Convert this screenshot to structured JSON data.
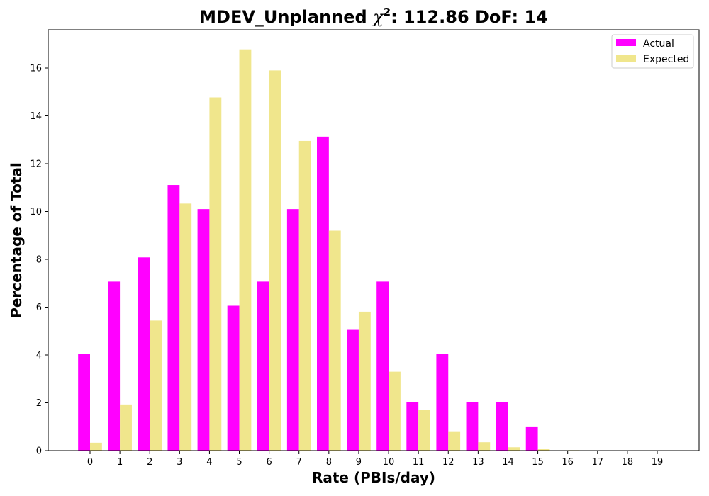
{
  "chart_data": {
    "type": "bar",
    "title_prefix": "MDEV_Unplanned ",
    "title_chi": "χ",
    "title_chi_exp": "2",
    "title_suffix": ": 112.86 DoF: 14",
    "xlabel": "Rate (PBIs/day)",
    "ylabel": "Percentage of Total",
    "categories": [
      "0",
      "1",
      "2",
      "3",
      "4",
      "5",
      "6",
      "7",
      "8",
      "9",
      "10",
      "11",
      "12",
      "13",
      "14",
      "15",
      "16",
      "17",
      "18",
      "19"
    ],
    "ylim": [
      0,
      17.6
    ],
    "yticks": [
      "0",
      "2",
      "4",
      "6",
      "8",
      "10",
      "12",
      "14",
      "16"
    ],
    "legend_position": "upper-right",
    "grid": false,
    "series": [
      {
        "name": "Actual",
        "color": "#ff00ff",
        "values": [
          4.04,
          7.07,
          8.08,
          11.11,
          10.1,
          6.06,
          7.07,
          10.1,
          13.13,
          5.05,
          7.07,
          2.02,
          4.04,
          2.02,
          2.02,
          1.01,
          0,
          0,
          0,
          0
        ]
      },
      {
        "name": "Expected",
        "color": "#f0e68c",
        "values": [
          0.33,
          1.93,
          5.44,
          10.33,
          14.77,
          16.78,
          15.9,
          12.95,
          9.2,
          5.81,
          3.3,
          1.71,
          0.81,
          0.35,
          0.14,
          0.06,
          0.02,
          0.01,
          0.0,
          0.0
        ]
      }
    ]
  }
}
